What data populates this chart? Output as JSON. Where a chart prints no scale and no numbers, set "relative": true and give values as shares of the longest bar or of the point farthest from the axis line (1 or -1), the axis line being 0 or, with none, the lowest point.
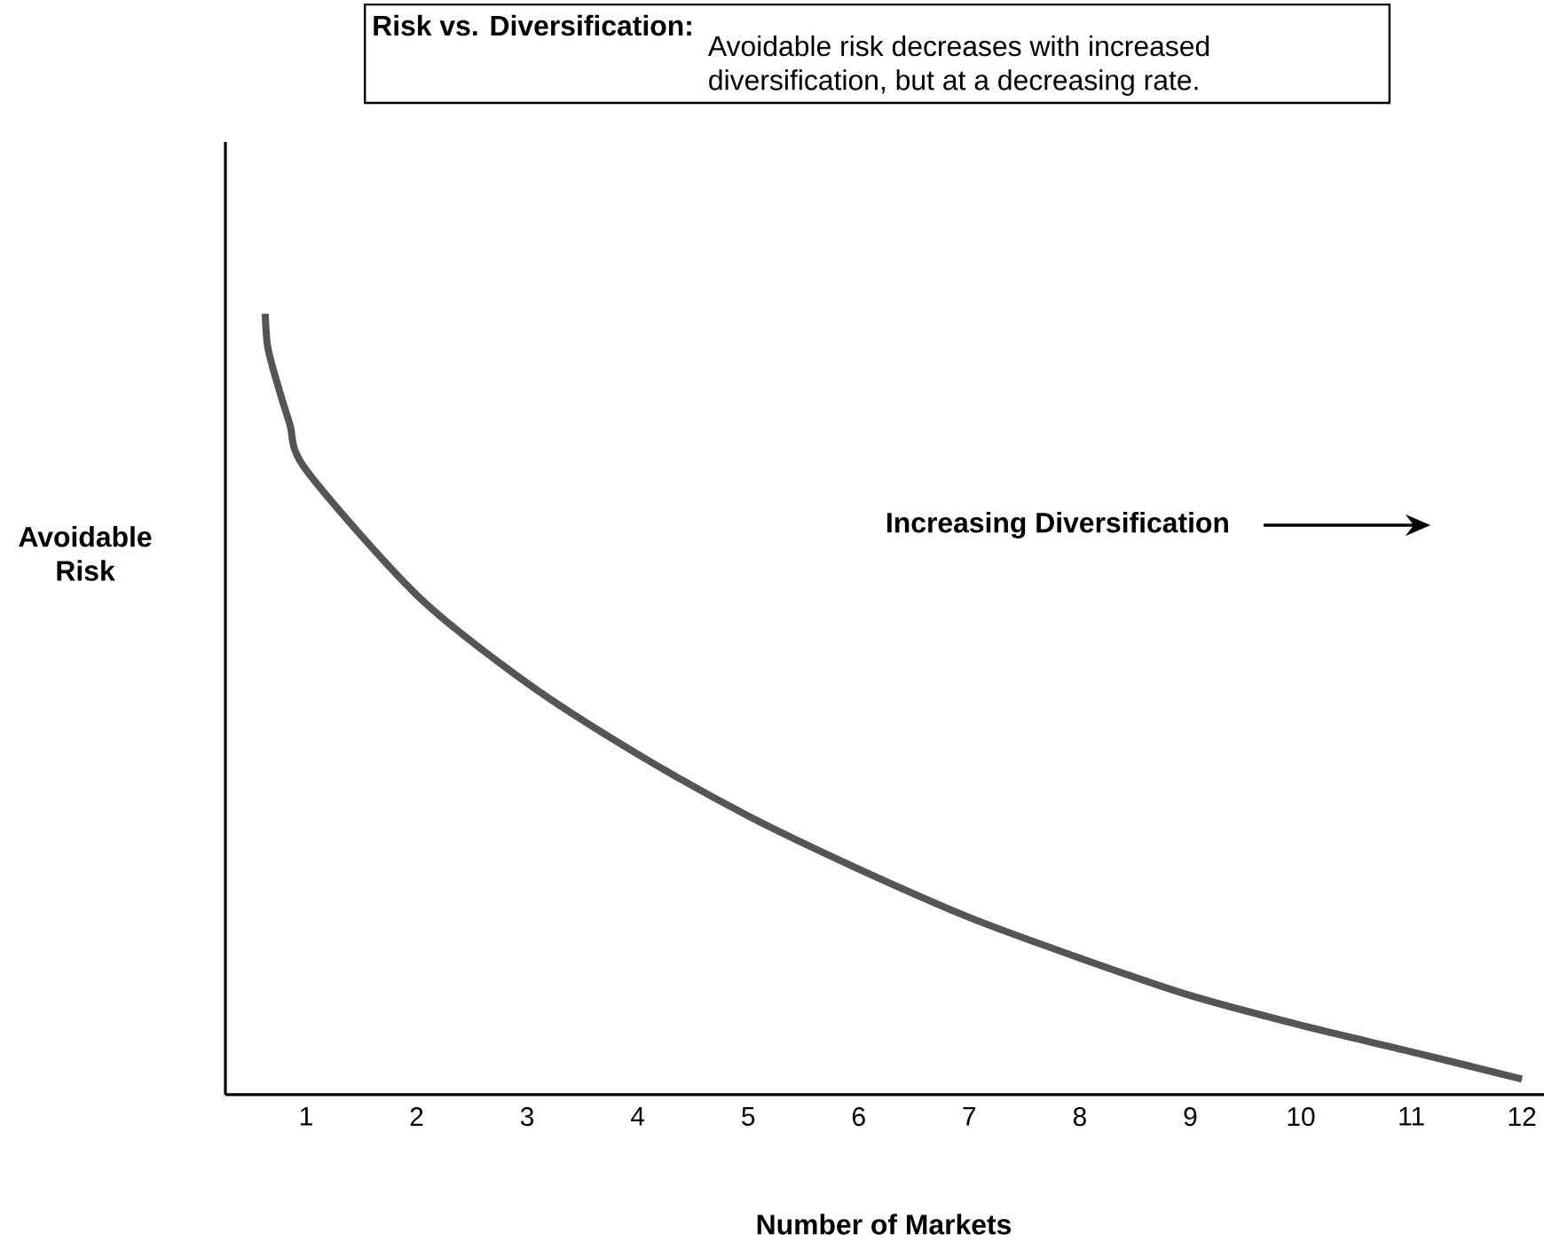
{
  "chart_data": {
    "type": "line",
    "title": "Risk vs. Diversification:",
    "subtitle": "Avoidable risk decreases with increased diversification, but at a decreasing rate.",
    "xlabel": "Number of Markets",
    "ylabel": "Avoidable Risk",
    "annotations": [
      "Increasing Diversification"
    ],
    "relative": true,
    "xlim": [
      0.27,
      12.2
    ],
    "xticks": [
      1,
      2,
      3,
      4,
      5,
      6,
      7,
      8,
      9,
      10,
      11,
      12
    ],
    "x": [
      0.63,
      0.65,
      0.71,
      0.85,
      1,
      2,
      3,
      4,
      5,
      6,
      7,
      8,
      9,
      10,
      11,
      12
    ],
    "series": [
      {
        "color": "#555555",
        "values": [
          1,
          0.96,
          0.925,
          0.86,
          0.8,
          0.64,
          0.527,
          0.436,
          0.357,
          0.289,
          0.227,
          0.175,
          0.127,
          0.089,
          0.055,
          0.02
        ]
      }
    ],
    "marker": "none",
    "line_style": "solid"
  }
}
